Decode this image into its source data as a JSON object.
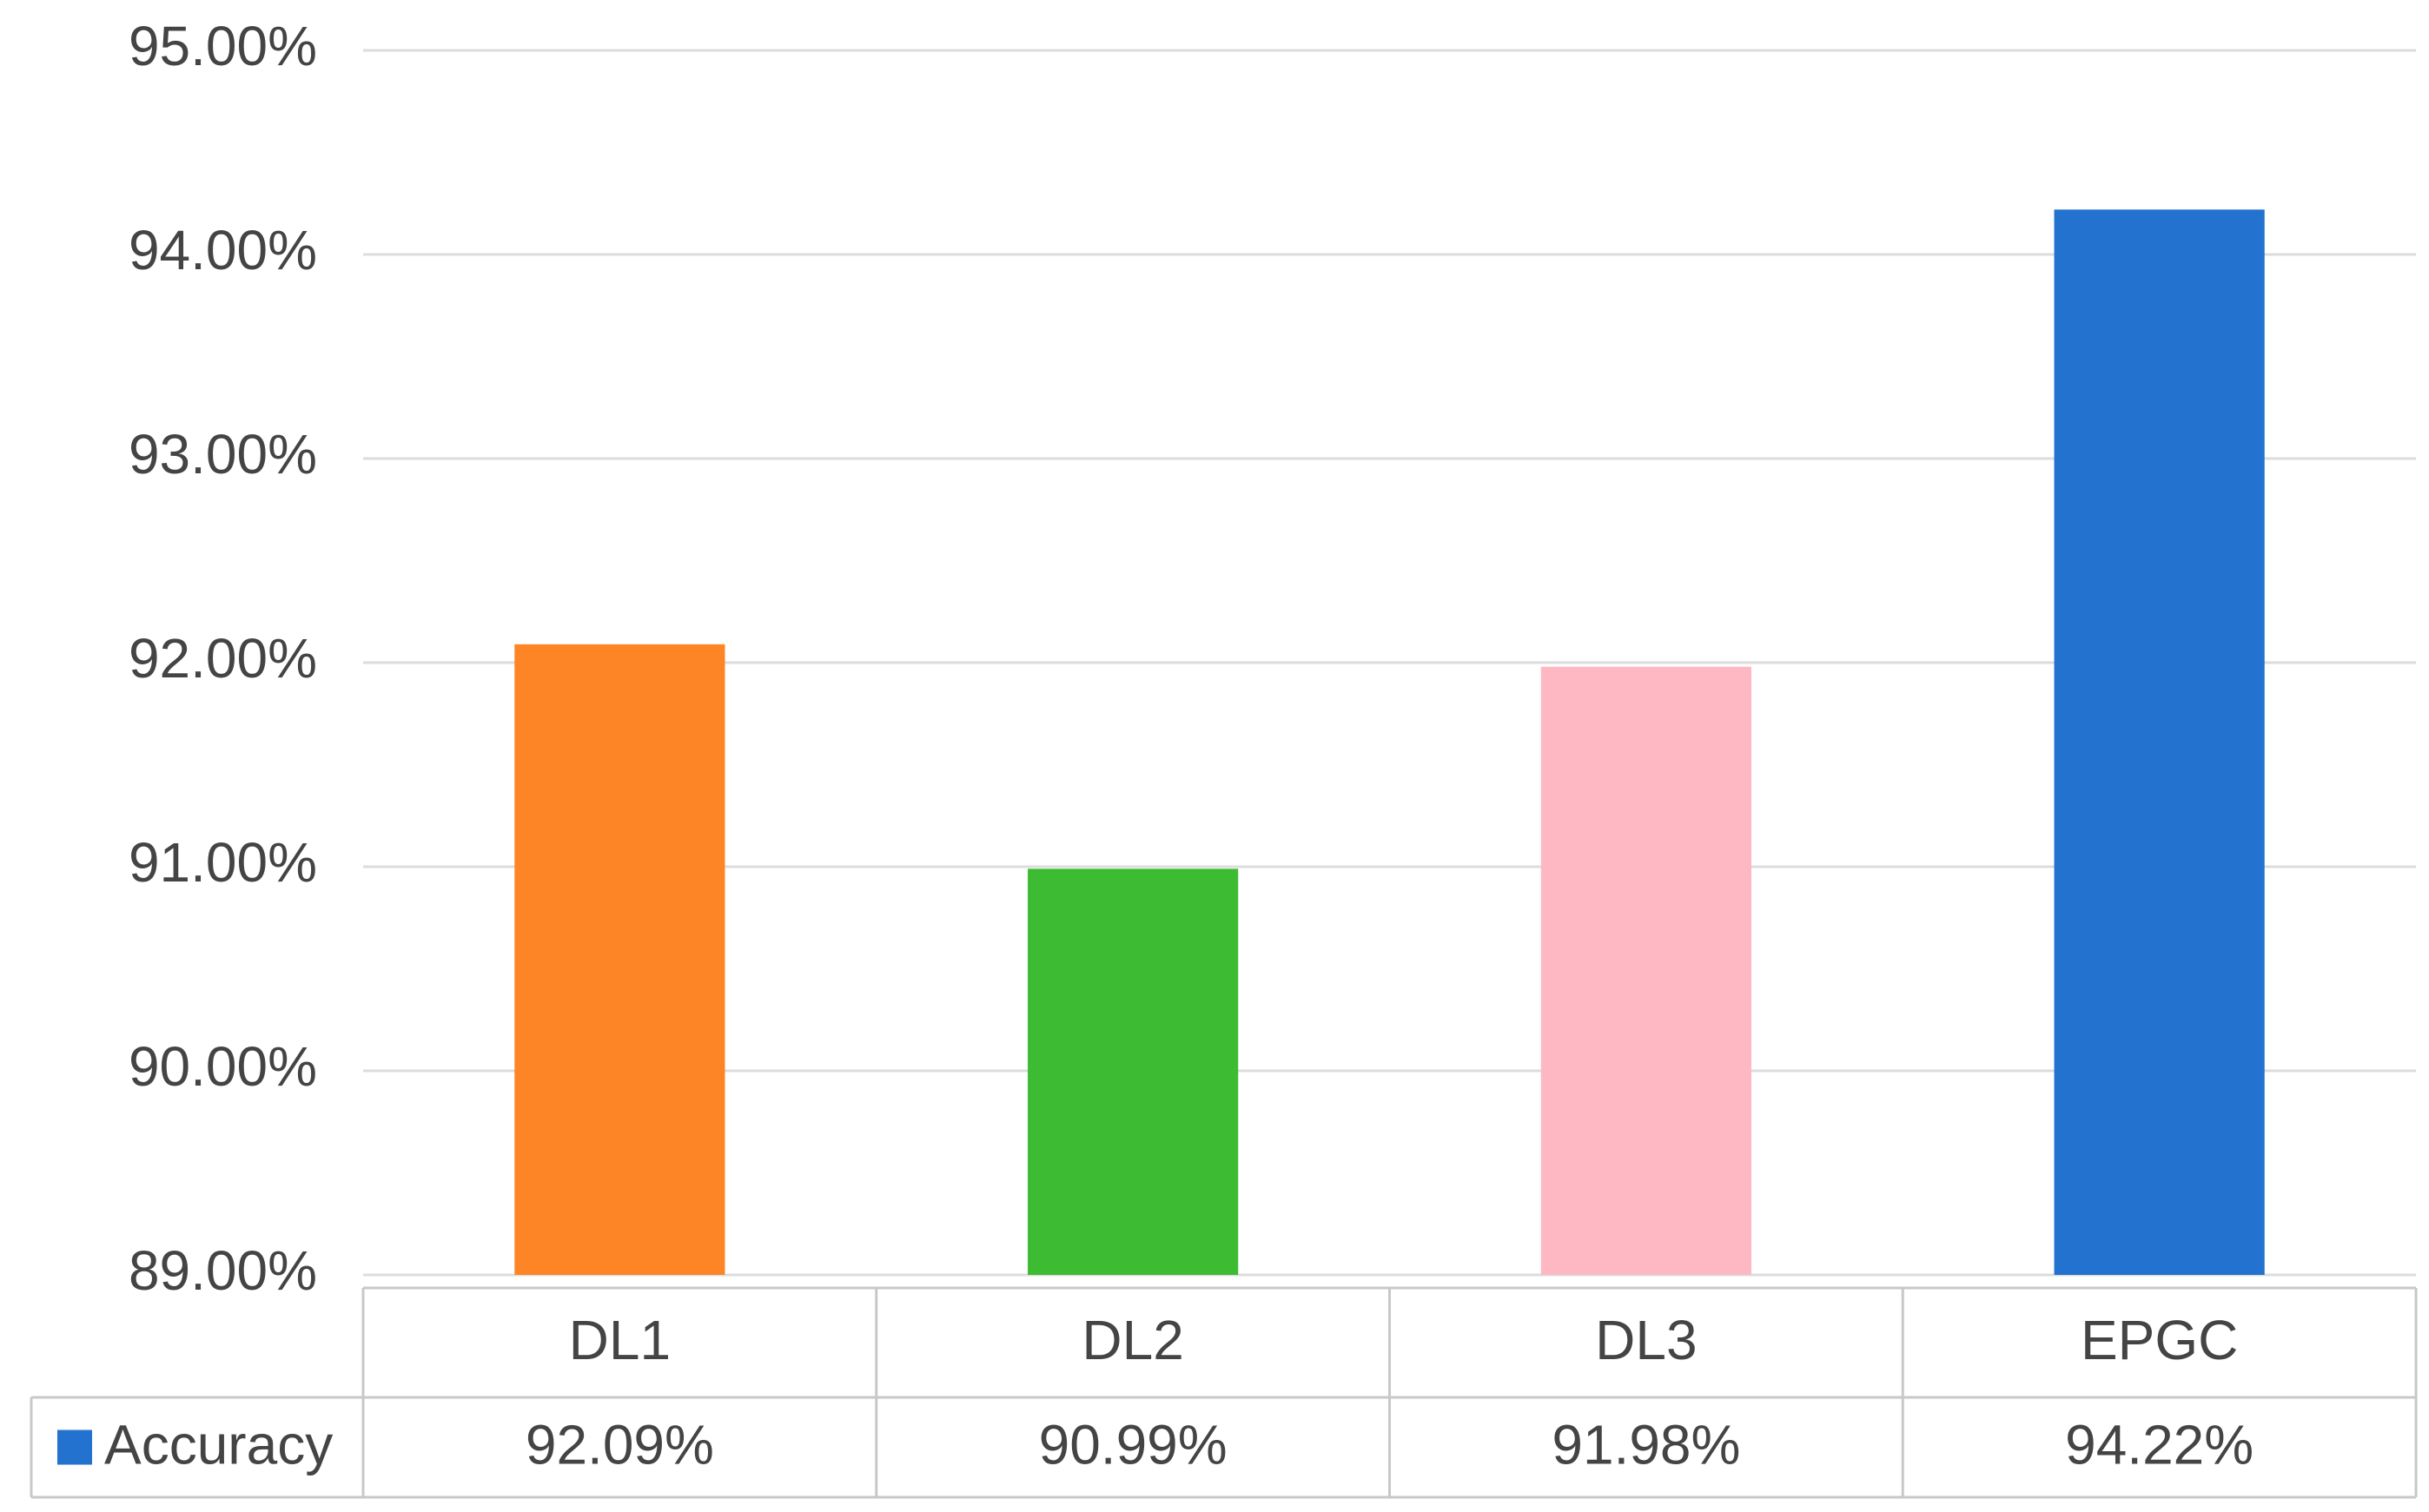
{
  "chart_data": {
    "type": "bar",
    "categories": [
      "DL1",
      "DL2",
      "DL3",
      "EPGC"
    ],
    "series": [
      {
        "name": "Accuracy",
        "color": "#2372cf",
        "values": [
          92.09,
          90.99,
          91.98,
          94.22
        ],
        "value_labels": [
          "92.09%",
          "90.99%",
          "91.98%",
          "94.22%"
        ],
        "colors": [
          "#fd8526",
          "#3dbc33",
          "#fdb8c3",
          "#2372cf"
        ]
      }
    ],
    "ylim": [
      89,
      95
    ],
    "yticks": [
      {
        "value": 89,
        "label": "89.00%"
      },
      {
        "value": 90,
        "label": "90.00%"
      },
      {
        "value": 91,
        "label": "91.00%"
      },
      {
        "value": 92,
        "label": "92.00%"
      },
      {
        "value": 93,
        "label": "93.00%"
      },
      {
        "value": 94,
        "label": "94.00%"
      },
      {
        "value": 95,
        "label": "95.00%"
      }
    ],
    "grid": true
  }
}
